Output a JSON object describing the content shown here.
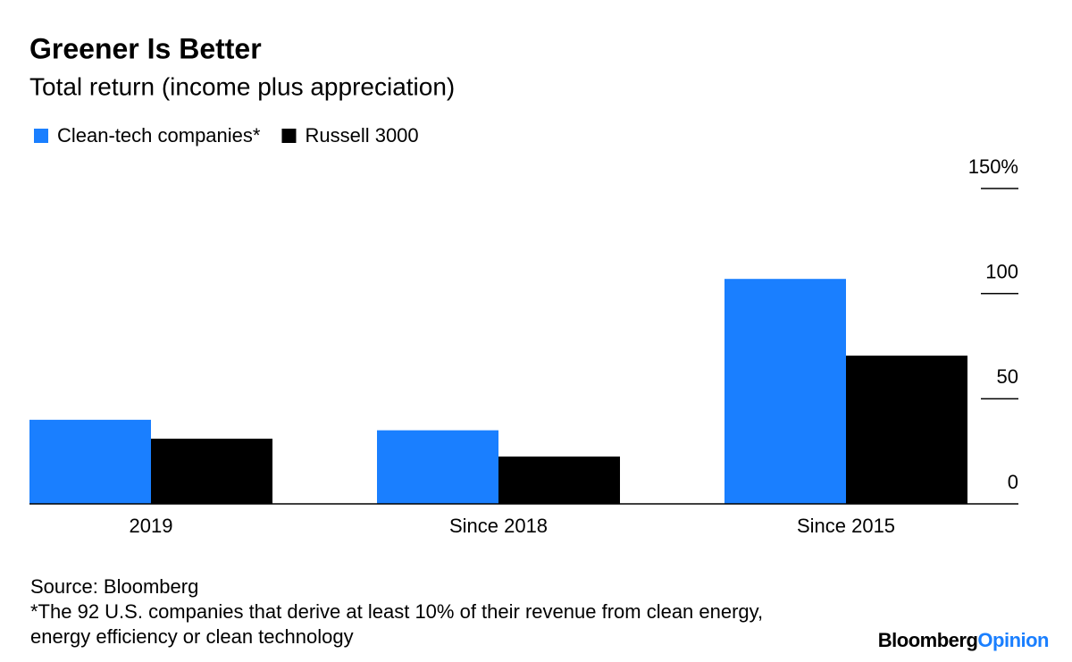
{
  "chart_data": {
    "type": "bar",
    "title": "Greener Is Better",
    "subtitle": "Total return (income plus appreciation)",
    "categories": [
      "2019",
      "Since 2018",
      "Since 2015"
    ],
    "series": [
      {
        "name": "Clean-tech companies*",
        "color": "#1a7fff",
        "values": [
          40,
          35,
          107
        ]
      },
      {
        "name": "Russell 3000",
        "color": "#000000",
        "values": [
          31,
          22.5,
          70.5
        ]
      }
    ],
    "ylim": [
      0,
      150
    ],
    "yticks": [
      0,
      50,
      100,
      {
        "value": 150,
        "label": "150%"
      }
    ],
    "grid": true,
    "y_axis_side": "right",
    "legend": "top-left",
    "source": "Source: Bloomberg",
    "note": "*The 92 U.S. companies that derive at least 10% of their revenue from clean energy, energy efficiency or clean technology"
  },
  "logo": {
    "brand": "Bloomberg",
    "product": "Opinion"
  }
}
